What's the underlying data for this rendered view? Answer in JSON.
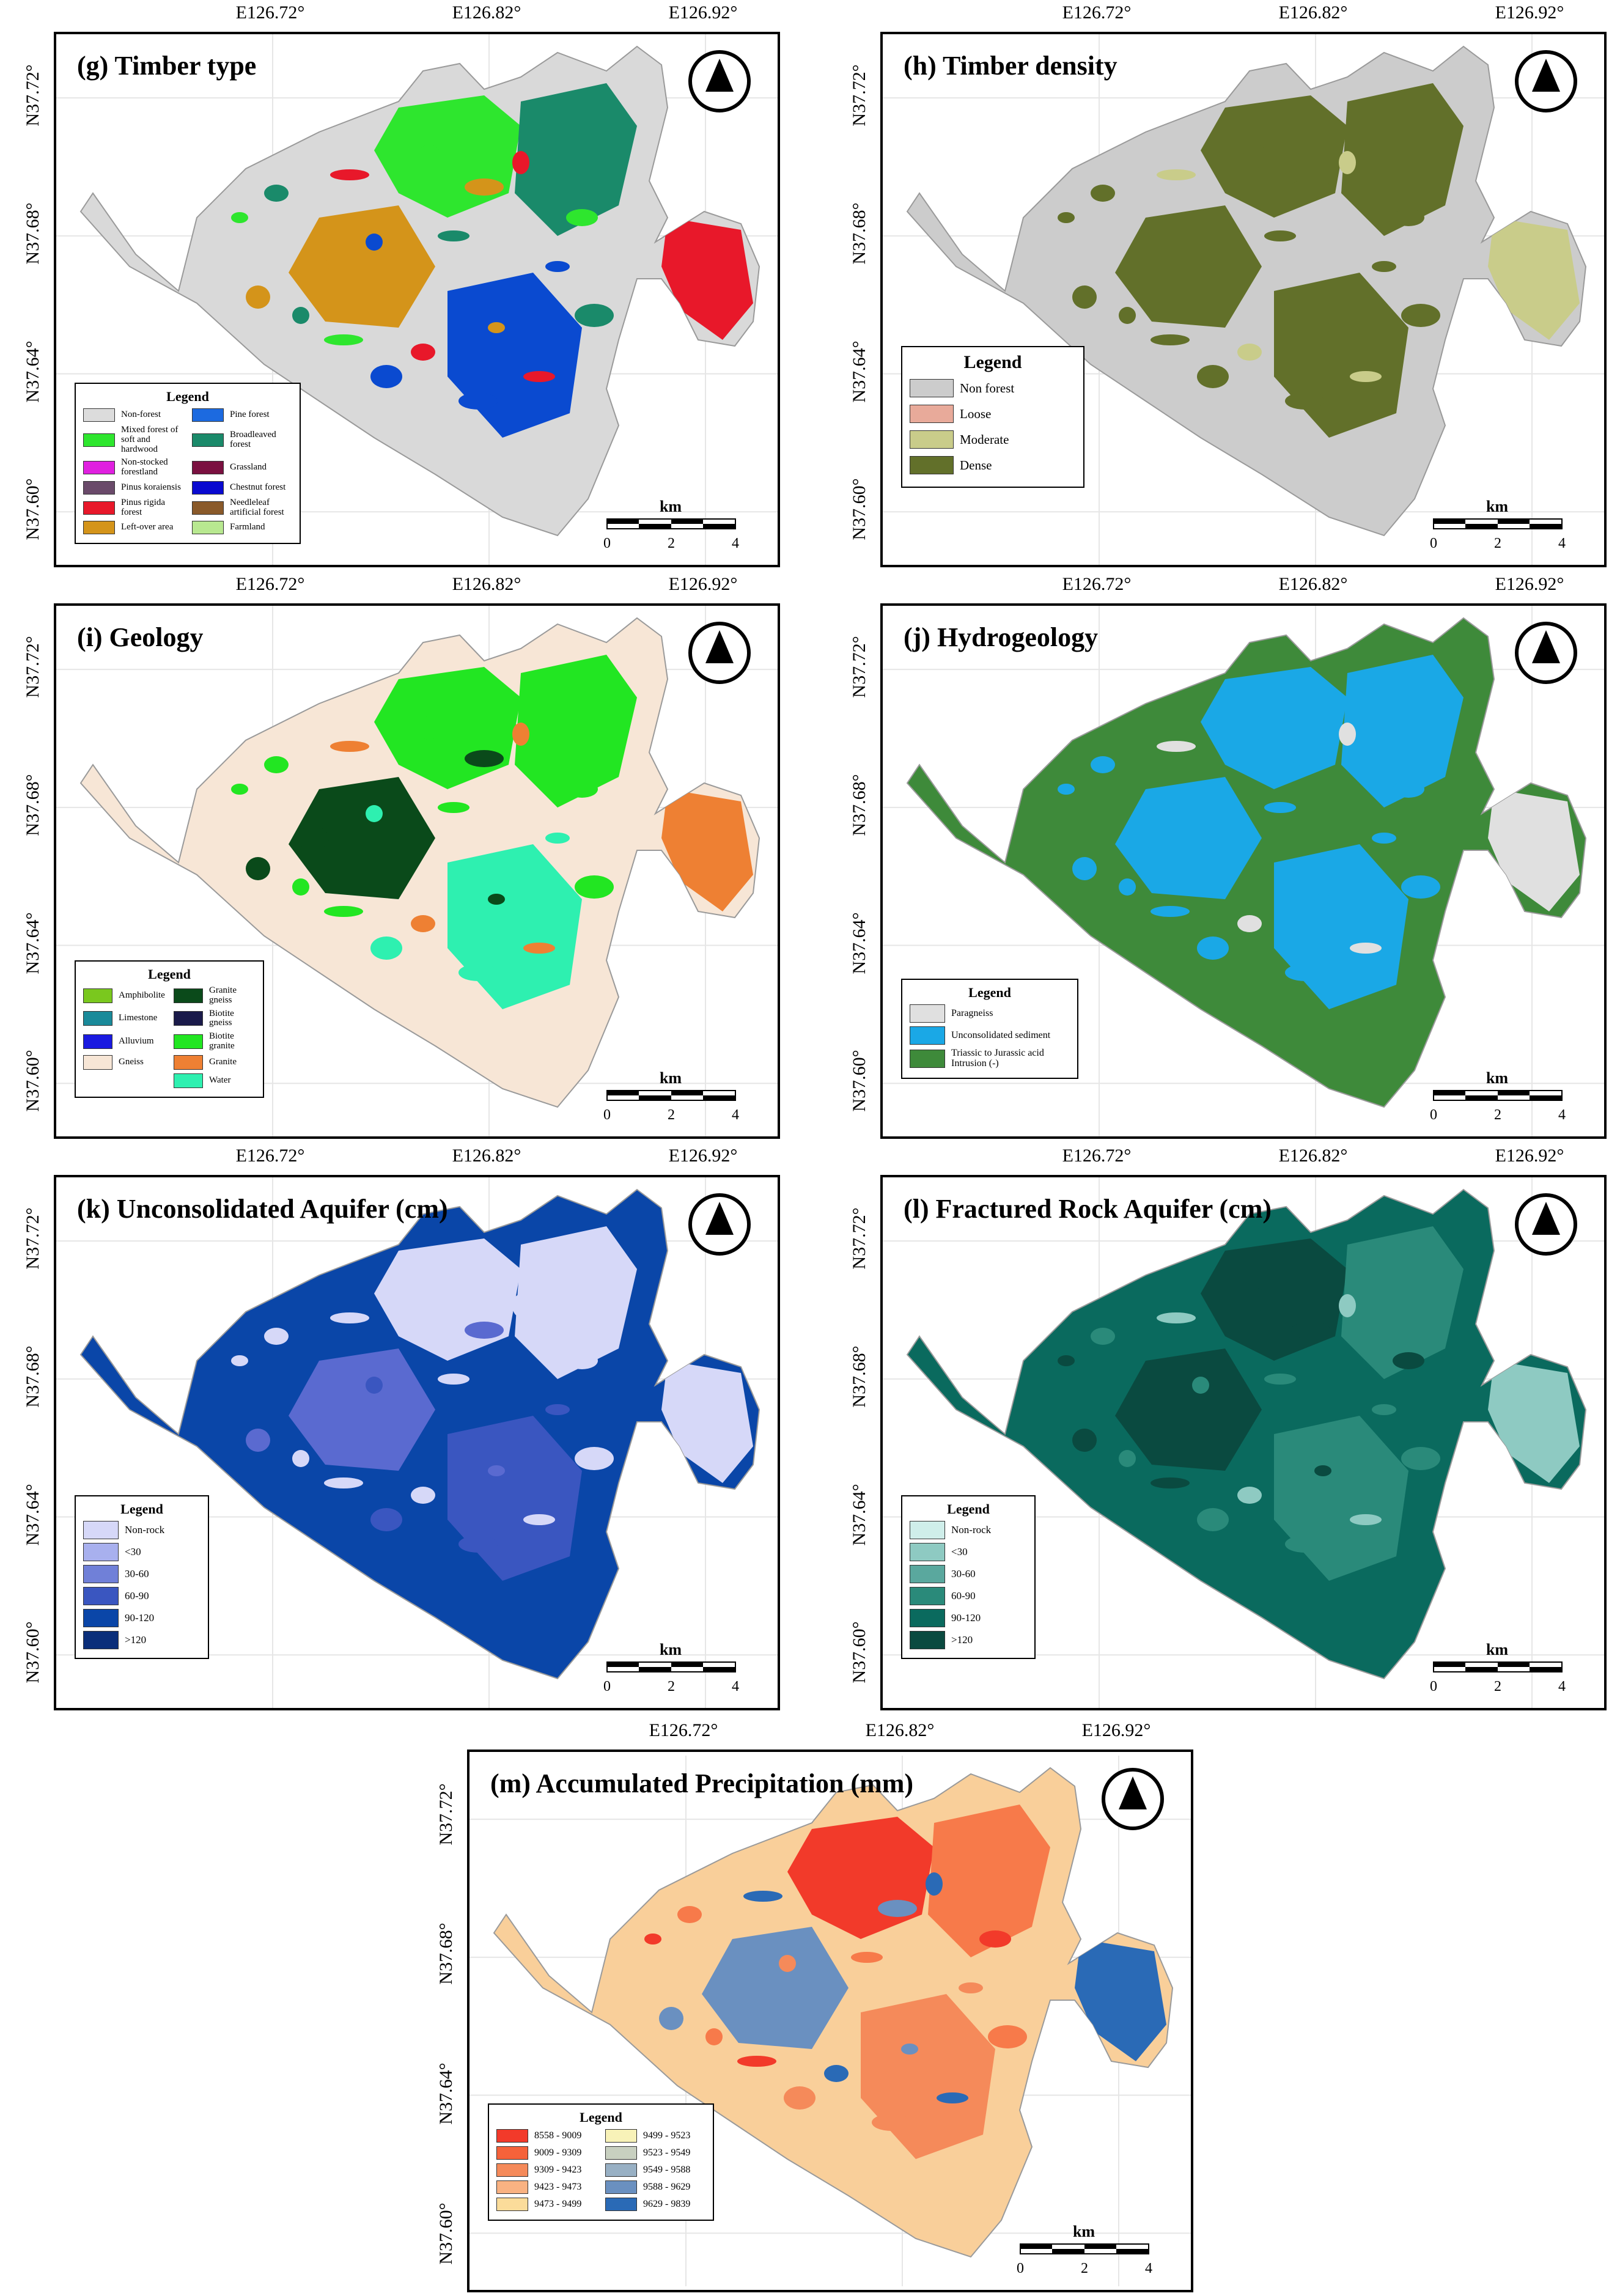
{
  "axis": {
    "lon_labels": [
      "E126.72°",
      "E126.82°",
      "E126.92°"
    ],
    "lat_labels": [
      "N37.72°",
      "N37.68°",
      "N37.64°",
      "N37.60°"
    ]
  },
  "scale": {
    "unit": "km",
    "ticks": [
      "0",
      "2",
      "4"
    ]
  },
  "panels": [
    {
      "id": "g",
      "title": "(g) Timber type",
      "legend_title": "Legend",
      "legend_columns": 2,
      "fill": "#d9d9d9",
      "patches": [
        "#2ee62e",
        "#1a8a6a",
        "#d4941a",
        "#e8182a",
        "#0a4ad0"
      ],
      "legend": [
        {
          "label": "Non-forest",
          "color": "#dcdcdc"
        },
        {
          "label": "Pine forest",
          "color": "#1c6ae0"
        },
        {
          "label": "Mixed forest of soft and hardwood",
          "color": "#2ee62e"
        },
        {
          "label": "Broadleaved forest",
          "color": "#1a8a6a"
        },
        {
          "label": "Non-stocked forestland",
          "color": "#e020e0"
        },
        {
          "label": "Grassland",
          "color": "#7a1040"
        },
        {
          "label": "Pinus koraiensis",
          "color": "#6a4a6a"
        },
        {
          "label": "Chestnut forest",
          "color": "#0a0ad0"
        },
        {
          "label": "Pinus rigida forest",
          "color": "#e8182a"
        },
        {
          "label": "Needleleaf artificial forest",
          "color": "#8a5a2a"
        },
        {
          "label": "Left-over area",
          "color": "#d4941a"
        },
        {
          "label": "Farmland",
          "color": "#b8e890"
        }
      ]
    },
    {
      "id": "h",
      "title": "(h) Timber density",
      "legend_title": "Legend",
      "legend_columns": 1,
      "fill": "#cccccc",
      "patches": [
        "#62702a",
        "#62702a",
        "#62702a",
        "#c9cc8a",
        "#62702a"
      ],
      "legend": [
        {
          "label": "Non forest",
          "color": "#cccccc"
        },
        {
          "label": "Loose",
          "color": "#e8aa9a"
        },
        {
          "label": "Moderate",
          "color": "#c9cc8a"
        },
        {
          "label": "Dense",
          "color": "#62702a"
        }
      ]
    },
    {
      "id": "i",
      "title": "(i) Geology",
      "legend_title": "Legend",
      "legend_columns": 2,
      "fill": "#f7e6d6",
      "patches": [
        "#22e622",
        "#22e622",
        "#0a4a1a",
        "#ee8033",
        "#2ef0b0"
      ],
      "legend": [
        {
          "label": "Amphibolite",
          "color": "#7ac81e"
        },
        {
          "label": "Granite gneiss",
          "color": "#0a4a1a"
        },
        {
          "label": "Limestone",
          "color": "#1a8a9a"
        },
        {
          "label": "Biotite gneiss",
          "color": "#1a1a4a"
        },
        {
          "label": "Alluvium",
          "color": "#1a1ae0"
        },
        {
          "label": "Biotite granite",
          "color": "#22e622"
        },
        {
          "label": "Gneiss",
          "color": "#f7e6d6"
        },
        {
          "label": "Granite",
          "color": "#ee8033"
        },
        {
          "label": "",
          "color": ""
        },
        {
          "label": "Water",
          "color": "#2ef0b0"
        }
      ]
    },
    {
      "id": "j",
      "title": "(j) Hydrogeology",
      "legend_title": "Legend",
      "legend_columns": 1,
      "fill": "#3e8a3a",
      "patches": [
        "#1aa8e6",
        "#1aa8e6",
        "#1aa8e6",
        "#e0e0e0",
        "#1aa8e6"
      ],
      "legend": [
        {
          "label": "Paragneiss",
          "color": "#e0e0e0"
        },
        {
          "label": "Unconsolidated sediment",
          "color": "#1aa8e6"
        },
        {
          "label": "Triassic to Jurassic acid Intrusion (-)",
          "color": "#3e8a3a"
        }
      ]
    },
    {
      "id": "k",
      "title": "(k) Unconsolidated Aquifer (cm)",
      "legend_title": "Legend",
      "legend_columns": 1,
      "fill": "#0a46a8",
      "patches": [
        "#d6d8f8",
        "#d6d8f8",
        "#5a6ad0",
        "#d6d8f8",
        "#3a56c0"
      ],
      "legend": [
        {
          "label": "Non-rock",
          "color": "#d6d8f8"
        },
        {
          "label": "<30",
          "color": "#a8b0ee"
        },
        {
          "label": "30-60",
          "color": "#7080d8"
        },
        {
          "label": "60-90",
          "color": "#3a56c0"
        },
        {
          "label": "90-120",
          "color": "#0a46a8"
        },
        {
          "label": ">120",
          "color": "#0a2e7a"
        }
      ]
    },
    {
      "id": "l",
      "title": "(l) Fractured Rock Aquifer (cm)",
      "legend_title": "Legend",
      "legend_columns": 1,
      "fill": "#0a6a5e",
      "patches": [
        "#0a4a40",
        "#2a8a7a",
        "#0a4a40",
        "#8ecac2",
        "#2a8a7a"
      ],
      "legend": [
        {
          "label": "Non-rock",
          "color": "#cfeeea"
        },
        {
          "label": "<30",
          "color": "#8ecac2"
        },
        {
          "label": "30-60",
          "color": "#5aa89e"
        },
        {
          "label": "60-90",
          "color": "#2a8a7a"
        },
        {
          "label": "90-120",
          "color": "#0a6a5e"
        },
        {
          "label": ">120",
          "color": "#0a4a40"
        }
      ]
    },
    {
      "id": "m",
      "title": "(m) Accumulated Precipitation (mm)",
      "legend_title": "Legend",
      "legend_columns": 2,
      "fill": "#f9cf9a",
      "patches": [
        "#f23a2a",
        "#f77a4a",
        "#6a90c0",
        "#2a6ab6",
        "#f58a5a"
      ],
      "legend": [
        {
          "label": "8558 - 9009",
          "color": "#f23a2a"
        },
        {
          "label": "9499 - 9523",
          "color": "#f8f2b8"
        },
        {
          "label": "9009 - 9309",
          "color": "#f5623a"
        },
        {
          "label": "9523 - 9549",
          "color": "#c8d0c0"
        },
        {
          "label": "9309 - 9423",
          "color": "#f58a5a"
        },
        {
          "label": "9549 - 9588",
          "color": "#98b0c4"
        },
        {
          "label": "9423 - 9473",
          "color": "#f9b282"
        },
        {
          "label": "9588 - 9629",
          "color": "#6a90c0"
        },
        {
          "label": "9473 - 9499",
          "color": "#fbdc9a"
        },
        {
          "label": "9629 - 9839",
          "color": "#2a6ab6"
        }
      ]
    }
  ]
}
